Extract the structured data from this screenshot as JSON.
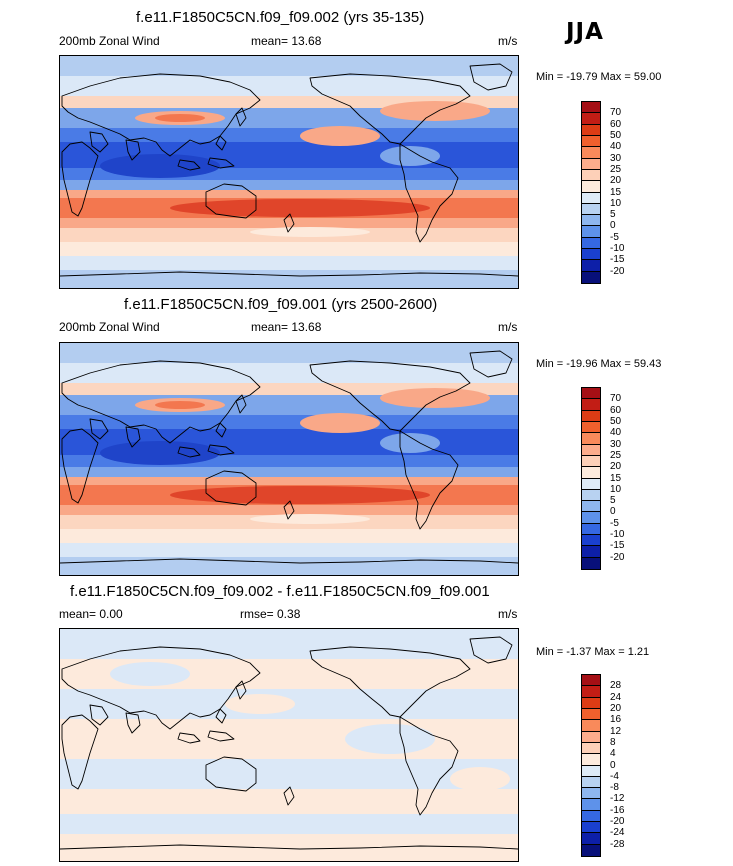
{
  "season": "JJA",
  "panels": [
    {
      "id": "case-1",
      "title": "f.e11.F1850C5CN.f09_f09.002 (yrs 35-135)",
      "left_label": "200mb Zonal Wind",
      "center_label": "mean=  13.68",
      "right_label": "m/s",
      "minmax": "Min = -19.79 Max =  59.00",
      "colorbar": {
        "labels": [
          "70",
          "60",
          "50",
          "40",
          "30",
          "25",
          "20",
          "15",
          "10",
          "5",
          "0",
          "-5",
          "-10",
          "-15",
          "-20"
        ],
        "colors": [
          "#a50f15",
          "#c21d15",
          "#dd3c15",
          "#f0602d",
          "#f98a5b",
          "#fcac8c",
          "#fdd0b8",
          "#fdebdd",
          "#deebf7",
          "#b8d2f1",
          "#8eb6ee",
          "#5e92ea",
          "#3568e3",
          "#1a40cf",
          "#0d1fa8",
          "#08107a"
        ]
      },
      "palette": "abs"
    },
    {
      "id": "case-2",
      "title": "f.e11.F1850C5CN.f09_f09.001 (yrs 2500-2600)",
      "left_label": "200mb Zonal Wind",
      "center_label": "mean=  13.68",
      "right_label": "m/s",
      "minmax": "Min = -19.96 Max =  59.43",
      "colorbar": {
        "labels": [
          "70",
          "60",
          "50",
          "40",
          "30",
          "25",
          "20",
          "15",
          "10",
          "5",
          "0",
          "-5",
          "-10",
          "-15",
          "-20"
        ],
        "colors": [
          "#a50f15",
          "#c21d15",
          "#dd3c15",
          "#f0602d",
          "#f98a5b",
          "#fcac8c",
          "#fdd0b8",
          "#fdebdd",
          "#deebf7",
          "#b8d2f1",
          "#8eb6ee",
          "#5e92ea",
          "#3568e3",
          "#1a40cf",
          "#0d1fa8",
          "#08107a"
        ]
      },
      "palette": "abs"
    },
    {
      "id": "difference",
      "title": "f.e11.F1850C5CN.f09_f09.002 - f.e11.F1850C5CN.f09_f09.001",
      "left_label": "mean=   0.00",
      "center_label": "rmse=   0.38",
      "right_label": "m/s",
      "minmax": "Min =  -1.37 Max =   1.21",
      "colorbar": {
        "labels": [
          "28",
          "24",
          "20",
          "16",
          "12",
          "8",
          "4",
          "0",
          "-4",
          "-8",
          "-12",
          "-16",
          "-20",
          "-24",
          "-28"
        ],
        "colors": [
          "#a50f15",
          "#c21d15",
          "#dd3c15",
          "#f0602d",
          "#f98a5b",
          "#fcac8c",
          "#fdd0b8",
          "#fdebdd",
          "#deebf7",
          "#b8d2f1",
          "#8eb6ee",
          "#5e92ea",
          "#3568e3",
          "#1a40cf",
          "#0d1fa8",
          "#08107a"
        ]
      },
      "palette": "diff"
    }
  ],
  "colors": {
    "red_dark": "#e0452a",
    "red": "#f3774f",
    "red_light": "#f9a888",
    "peach": "#fcd6c0",
    "cream": "#fdeadc",
    "blue_pale": "#dbe8f7",
    "blue_light": "#b3cdf0",
    "blue": "#7da6ea",
    "blue_mid": "#4a7be6",
    "blue_dark": "#2a55d9"
  }
}
